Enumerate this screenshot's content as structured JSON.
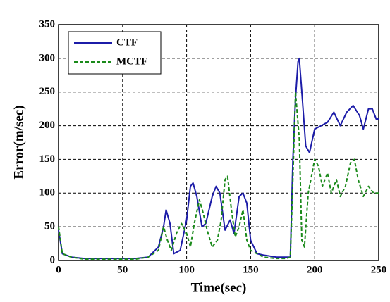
{
  "chart_data": {
    "type": "line",
    "x_label": "Time(sec)",
    "y_label": "Error(m/sec)",
    "xlim": [
      0,
      250
    ],
    "ylim": [
      0,
      350
    ],
    "xticks": [
      0,
      50,
      100,
      150,
      200,
      250
    ],
    "yticks": [
      0,
      50,
      100,
      150,
      200,
      250,
      300,
      350
    ],
    "grid": true,
    "legend": "upper left",
    "series": [
      {
        "name": "CTF",
        "color": "#1c1ca8",
        "line_style": "solid",
        "x": [
          0,
          3,
          10,
          20,
          30,
          40,
          50,
          60,
          70,
          78,
          82,
          84,
          87,
          90,
          95,
          100,
          103,
          105,
          108,
          112,
          115,
          120,
          123,
          126,
          130,
          134,
          137,
          141,
          144,
          147,
          150,
          155,
          160,
          170,
          178,
          181,
          183,
          185,
          187,
          188,
          190,
          193,
          196,
          200,
          205,
          210,
          215,
          220,
          225,
          230,
          235,
          238,
          242,
          245,
          248,
          250
        ],
        "values": [
          45,
          10,
          5,
          3,
          3,
          3,
          3,
          3,
          5,
          20,
          50,
          75,
          55,
          10,
          15,
          60,
          110,
          115,
          95,
          50,
          55,
          95,
          110,
          100,
          45,
          60,
          40,
          95,
          100,
          85,
          30,
          10,
          8,
          5,
          5,
          5,
          150,
          240,
          295,
          300,
          250,
          170,
          160,
          195,
          200,
          205,
          220,
          200,
          220,
          230,
          215,
          195,
          225,
          225,
          210,
          210
        ]
      },
      {
        "name": "MCTF",
        "color": "#1a8a1a",
        "line_style": "dashed",
        "x": [
          0,
          3,
          10,
          20,
          30,
          40,
          50,
          60,
          70,
          78,
          82,
          85,
          88,
          92,
          96,
          100,
          103,
          106,
          110,
          113,
          116,
          120,
          124,
          127,
          130,
          132,
          135,
          138,
          141,
          144,
          147,
          150,
          160,
          170,
          178,
          181,
          183,
          185,
          188,
          190,
          192,
          195,
          198,
          200,
          203,
          206,
          210,
          213,
          217,
          220,
          224,
          228,
          231,
          234,
          238,
          242,
          246,
          250
        ],
        "values": [
          50,
          10,
          5,
          2,
          2,
          2,
          2,
          2,
          5,
          15,
          50,
          30,
          15,
          40,
          55,
          40,
          20,
          55,
          90,
          70,
          45,
          20,
          30,
          60,
          120,
          125,
          75,
          35,
          50,
          75,
          30,
          15,
          5,
          3,
          3,
          5,
          120,
          250,
          180,
          30,
          20,
          100,
          130,
          150,
          140,
          110,
          130,
          100,
          120,
          95,
          110,
          145,
          150,
          120,
          95,
          110,
          100,
          100
        ]
      }
    ]
  }
}
